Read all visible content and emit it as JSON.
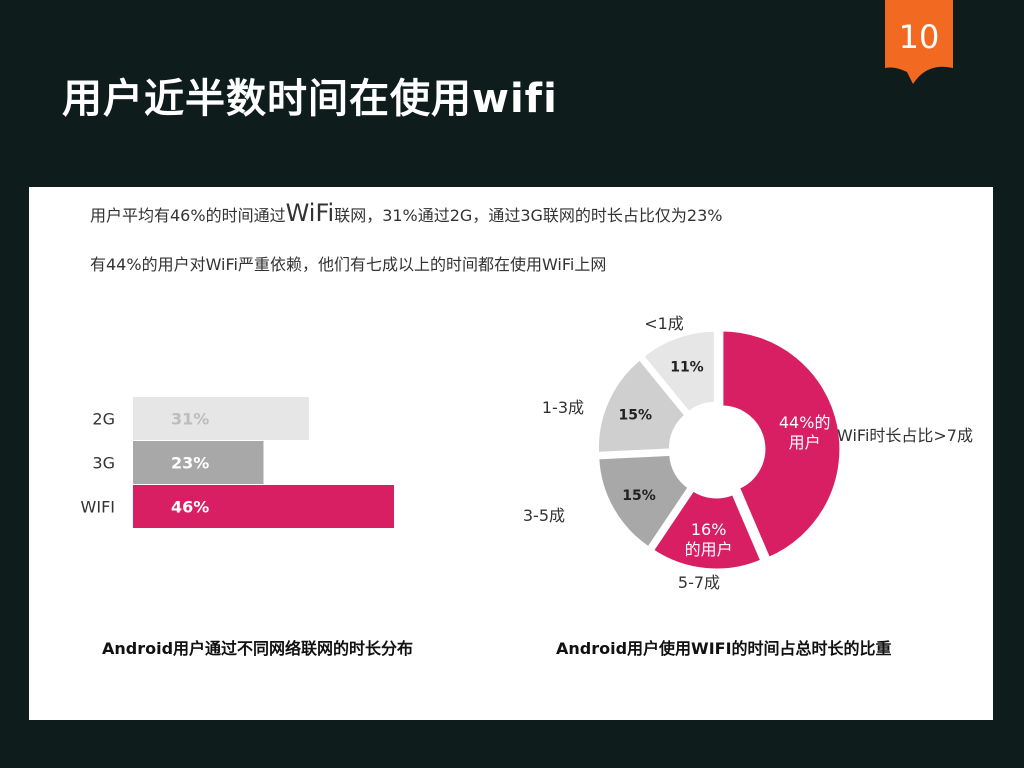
{
  "slide": {
    "title": "用户近半数时间在使用wifi",
    "page_number": "10"
  },
  "colors": {
    "background": "#0f1c1c",
    "badge": "#f26a21",
    "magenta": "#d81f63",
    "gray_dark": "#a8a8a8",
    "gray_mid": "#cfcfcf",
    "gray_light": "#e6e6e6"
  },
  "summary": {
    "line1_pre": "用户平均有46%的时间通过",
    "line1_wifi": "WiFi",
    "line1_post": "联网，31%通过2G，通过3G联网的时长占比仅为23%",
    "line2": "有44%的用户对WiFi严重依赖，他们有七成以上的时间都在使用WiFi上网"
  },
  "chart_data": [
    {
      "type": "bar",
      "orientation": "horizontal",
      "title": "Android用户通过不同网络联网的时长分布",
      "categories": [
        "2G",
        "3G",
        "WIFI"
      ],
      "values": [
        31,
        23,
        46
      ],
      "value_labels": [
        "31%",
        "23%",
        "46%"
      ],
      "xlim": [
        0,
        46
      ],
      "colors": [
        "#e6e6e6",
        "#a8a8a8",
        "#d81f63"
      ],
      "grid": false
    },
    {
      "type": "pie",
      "donut": true,
      "title": "Android用户使用WIFI的时间占总时长的比重",
      "slices": [
        {
          "label": "WiFi时长占比>7成",
          "value": 44,
          "inner_label": [
            "44%的",
            "用户"
          ],
          "color": "#d81f63"
        },
        {
          "label": "5-7成",
          "value": 16,
          "inner_label": [
            "16%",
            "的用户"
          ],
          "color": "#d81f63"
        },
        {
          "label": "3-5成",
          "value": 15,
          "inner_label": [
            "15%"
          ],
          "color": "#a8a8a8"
        },
        {
          "label": "1-3成",
          "value": 15,
          "inner_label": [
            "15%"
          ],
          "color": "#cfcfcf"
        },
        {
          "label": "<1成",
          "value": 11,
          "inner_label": [
            "11%"
          ],
          "color": "#e6e6e6"
        }
      ],
      "legend": "labels-outside"
    }
  ]
}
